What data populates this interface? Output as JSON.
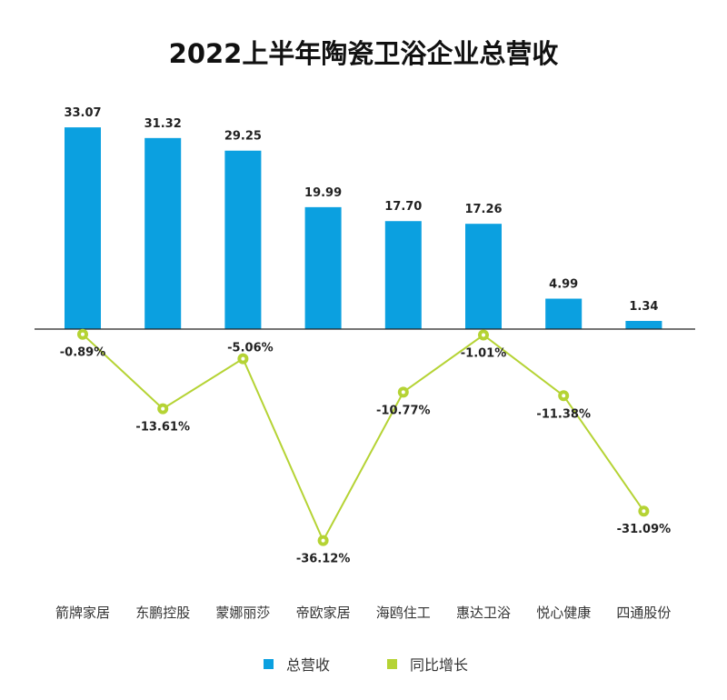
{
  "chart_data": {
    "type": "bar+line",
    "title": "2022上半年陶瓷卫浴企业总营收",
    "categories": [
      "箭牌家居",
      "东鹏控股",
      "蒙娜丽莎",
      "帝欧家居",
      "海鸥住工",
      "惠达卫浴",
      "悦心健康",
      "四通股份"
    ],
    "series": [
      {
        "name": "总营收",
        "type": "bar",
        "color": "#0ba0e0",
        "values": [
          33.07,
          31.32,
          29.25,
          19.99,
          17.7,
          17.26,
          4.99,
          1.34
        ],
        "labels": [
          "33.07",
          "31.32",
          "29.25",
          "19.99",
          "17.70",
          "17.26",
          "4.99",
          "1.34"
        ]
      },
      {
        "name": "同比增长",
        "type": "line",
        "color": "#b5d334",
        "values": [
          -0.89,
          -13.61,
          -5.06,
          -36.12,
          -10.77,
          -1.01,
          -11.38,
          -31.09
        ],
        "labels": [
          "-0.89%",
          "-13.61%",
          "-5.06%",
          "-36.12%",
          "-10.77%",
          "-1.01%",
          "-11.38%",
          "-31.09%"
        ]
      }
    ],
    "grid": false,
    "legend": "bottom"
  }
}
